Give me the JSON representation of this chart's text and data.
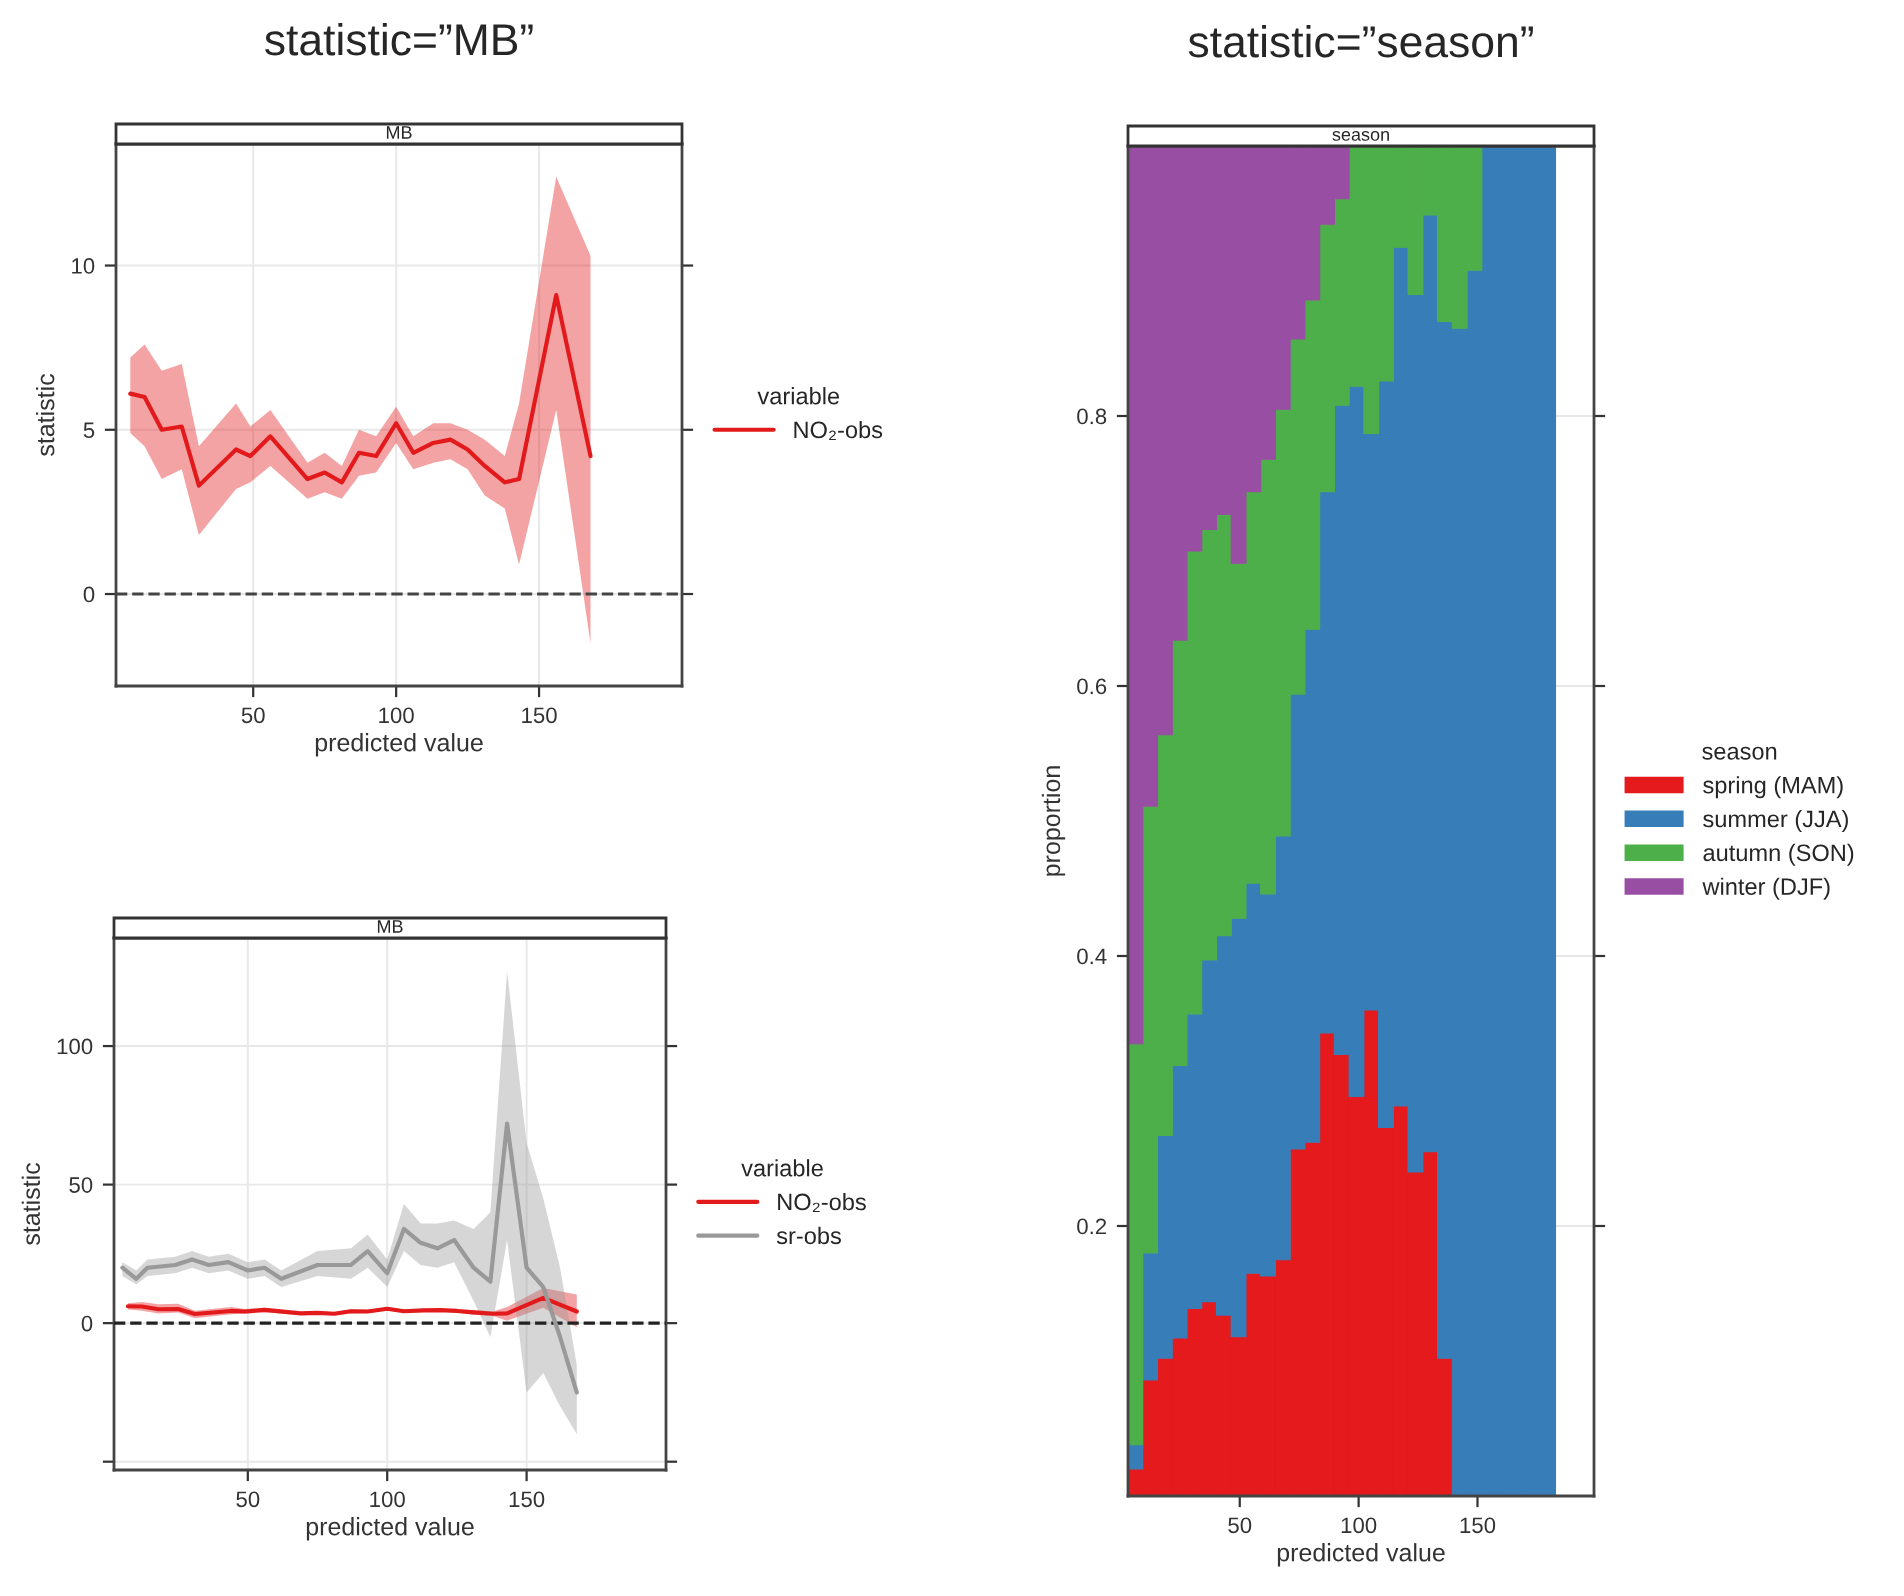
{
  "chart_data": [
    {
      "type": "line",
      "title": "statistic=”MB”",
      "subtitle": "MB",
      "xlabel": "predicted value",
      "ylabel": "statistic",
      "legend_title": "variable",
      "legend": "right",
      "grid": true,
      "marker": "none",
      "line_style": "solid",
      "xlim": [
        2,
        200
      ],
      "xticks": [
        50,
        100,
        150
      ],
      "ylim": [
        -2.8,
        13.7
      ],
      "yticks": [
        0,
        5,
        10
      ],
      "ref_lines": [
        {
          "axis": "y",
          "value": 0,
          "color": "#444444",
          "line_style": "dashed"
        }
      ],
      "series": [
        {
          "name": "NO₂-obs",
          "color": "#e31a1c",
          "x": [
            7,
            12,
            18,
            25,
            31,
            44,
            49,
            56,
            69,
            75,
            81,
            87,
            93,
            100,
            106,
            113,
            119,
            125,
            131,
            138,
            143,
            156,
            168
          ],
          "values": [
            6.1,
            6.0,
            5.0,
            5.1,
            3.3,
            4.4,
            4.2,
            4.8,
            3.5,
            3.7,
            3.4,
            4.3,
            4.2,
            5.2,
            4.3,
            4.6,
            4.7,
            4.4,
            3.9,
            3.4,
            3.5,
            9.1,
            4.2
          ],
          "lower": [
            4.9,
            4.5,
            3.5,
            3.8,
            1.8,
            3.2,
            3.4,
            3.9,
            2.9,
            3.1,
            2.9,
            3.6,
            3.7,
            4.6,
            3.8,
            4.0,
            4.1,
            3.8,
            3.0,
            2.6,
            0.9,
            5.6,
            -1.5
          ],
          "upper": [
            7.2,
            7.6,
            6.8,
            7.0,
            4.5,
            5.8,
            5.1,
            5.6,
            4.0,
            4.3,
            3.9,
            5.0,
            4.8,
            5.7,
            4.8,
            5.2,
            5.2,
            5.0,
            4.7,
            4.2,
            5.8,
            12.7,
            10.3
          ]
        }
      ]
    },
    {
      "type": "line",
      "subtitle": "MB",
      "xlabel": "predicted value",
      "ylabel": "statistic",
      "legend_title": "variable",
      "legend": "right",
      "grid": true,
      "marker": "none",
      "line_style": "solid",
      "xlim": [
        2,
        200
      ],
      "xticks": [
        50,
        100,
        150
      ],
      "ylim": [
        -53,
        139
      ],
      "yticks": [
        {
          "value": -50,
          "label": null
        },
        0,
        50,
        100
      ],
      "ref_lines": [
        {
          "axis": "y",
          "value": 0,
          "color": "#222222",
          "line_style": "dashed"
        }
      ],
      "series": [
        {
          "name": "NO₂-obs",
          "color": "#e31a1c",
          "x": [
            7,
            12,
            18,
            25,
            31,
            44,
            49,
            56,
            69,
            75,
            81,
            87,
            93,
            100,
            106,
            113,
            119,
            125,
            131,
            138,
            143,
            156,
            168
          ],
          "values": [
            6.1,
            6.0,
            5.0,
            5.1,
            3.3,
            4.4,
            4.2,
            4.8,
            3.5,
            3.7,
            3.4,
            4.3,
            4.2,
            5.2,
            4.3,
            4.6,
            4.7,
            4.4,
            3.9,
            3.4,
            3.5,
            9.1,
            4.2
          ],
          "lower": [
            4.9,
            4.5,
            3.5,
            3.8,
            1.8,
            3.2,
            3.4,
            3.9,
            2.9,
            3.1,
            2.9,
            3.6,
            3.7,
            4.6,
            3.8,
            4.0,
            4.1,
            3.8,
            3.0,
            2.6,
            0.9,
            5.6,
            -1.5
          ],
          "upper": [
            7.2,
            7.6,
            6.8,
            7.0,
            4.5,
            5.8,
            5.1,
            5.6,
            4.0,
            4.3,
            3.9,
            5.0,
            4.8,
            5.7,
            4.8,
            5.2,
            5.2,
            5.0,
            4.7,
            4.2,
            5.8,
            12.7,
            10.3
          ]
        },
        {
          "name": "sr-obs",
          "color": "#999999",
          "x": [
            5,
            10,
            14,
            24,
            30,
            36,
            43,
            50,
            56,
            62,
            75,
            87,
            93,
            100,
            106,
            112,
            118,
            124,
            131,
            137,
            143,
            150,
            156,
            162,
            168
          ],
          "values": [
            20,
            16,
            20,
            21,
            23,
            21,
            22,
            19,
            20,
            16,
            21,
            21,
            26,
            18,
            34,
            29,
            27,
            30,
            20,
            15,
            72,
            20,
            13,
            -5,
            -25
          ],
          "lower": [
            17,
            14,
            17,
            18,
            20,
            18,
            19,
            16,
            17,
            13,
            17,
            16,
            20,
            13,
            26,
            21,
            20,
            22,
            8,
            -5,
            30,
            -25,
            -18,
            -30,
            -40
          ],
          "upper": [
            22,
            19,
            23,
            24,
            26,
            24,
            25,
            22,
            23,
            19,
            26,
            27,
            32,
            23,
            43,
            36,
            36,
            37,
            34,
            40,
            127,
            65,
            45,
            20,
            -15
          ]
        }
      ]
    },
    {
      "type": "bar",
      "stacked": true,
      "title": "statistic=”season”",
      "subtitle": "season",
      "xlabel": "predicted value",
      "ylabel": "proportion",
      "legend_title": "season",
      "legend": "right",
      "grid": true,
      "xlim": [
        3,
        199
      ],
      "xticks": [
        50,
        100,
        150
      ],
      "ylim": [
        0,
        1
      ],
      "yticks": [
        0.2,
        0.4,
        0.6,
        0.8
      ],
      "x": [
        6.1,
        12.3,
        18.5,
        24.7,
        30.9,
        37.1,
        43.3,
        49.5,
        55.7,
        61.9,
        68.1,
        74.3,
        80.5,
        86.7,
        92.9,
        99.1,
        105.3,
        111.5,
        117.7,
        123.9,
        130.1,
        136.3,
        142.5,
        148.7,
        154.9,
        161.1,
        167.3,
        173.5,
        179.7
      ],
      "series": [
        {
          "name": "spring (MAM)",
          "color": "#e41a1c",
          "values": [
            0.02,
            0.086,
            0.102,
            0.117,
            0.139,
            0.144,
            0.134,
            0.118,
            0.165,
            0.163,
            0.175,
            0.257,
            0.262,
            0.343,
            0.327,
            0.296,
            0.36,
            0.273,
            0.289,
            0.24,
            0.255,
            0.102,
            0,
            0,
            0,
            0,
            0,
            0,
            0
          ]
        },
        {
          "name": "summer (JJA)",
          "color": "#377eb8",
          "values": [
            0.018,
            0.094,
            0.165,
            0.202,
            0.218,
            0.253,
            0.281,
            0.31,
            0.289,
            0.283,
            0.314,
            0.337,
            0.38,
            0.401,
            0.481,
            0.526,
            0.427,
            0.553,
            0.636,
            0.65,
            0.694,
            0.768,
            0.865,
            0.908,
            1,
            1,
            1,
            1,
            1
          ]
        },
        {
          "name": "autumn (SON)",
          "color": "#4daf4a",
          "values": [
            0.297,
            0.331,
            0.297,
            0.315,
            0.343,
            0.319,
            0.312,
            0.263,
            0.29,
            0.322,
            0.316,
            0.263,
            0.244,
            0.198,
            0.153,
            0.178,
            0.213,
            0.174,
            0.075,
            0.11,
            0.051,
            0.13,
            0.135,
            0.092,
            0,
            0,
            0,
            0,
            0
          ]
        },
        {
          "name": "winter (DJF)",
          "color": "#984ea3",
          "values": [
            0.665,
            0.489,
            0.436,
            0.366,
            0.3,
            0.284,
            0.273,
            0.309,
            0.256,
            0.232,
            0.195,
            0.143,
            0.114,
            0.058,
            0.039,
            0,
            0,
            0,
            0,
            0,
            0,
            0,
            0,
            0,
            0,
            0,
            0,
            0,
            0
          ]
        }
      ]
    }
  ]
}
